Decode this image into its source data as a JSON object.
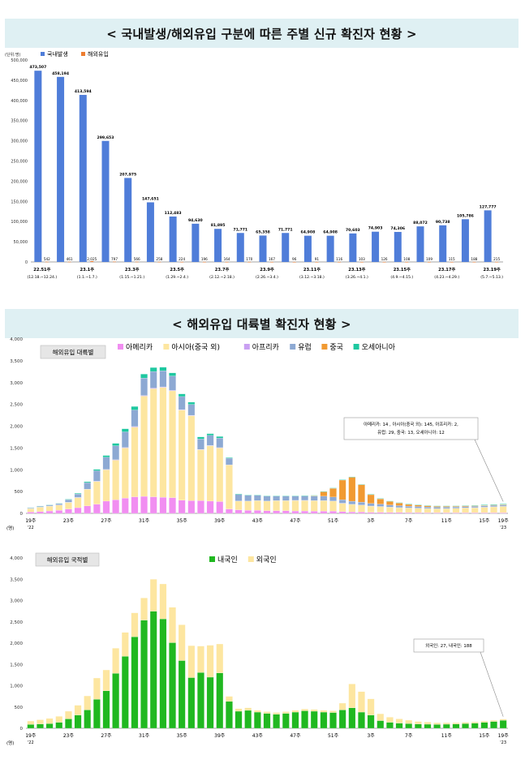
{
  "banners": {
    "top": "< 국내발생/해외유입 구분에 따른 주별 신규 확진자 현황 >",
    "middle": "< 해외유입 대륙별 확진자 현황 >"
  },
  "chart_data": [
    {
      "type": "bar",
      "y_unit_label": "(단위:명)",
      "legend": [
        "국내발생",
        "해외유입"
      ],
      "colors": [
        "#4f7dd9",
        "#ed7d31"
      ],
      "ylim": [
        0,
        500000
      ],
      "yticks": [
        "500,000",
        "450,000",
        "400,000",
        "350,000",
        "300,000",
        "250,000",
        "200,000",
        "150,000",
        "100,000",
        "50,000",
        "0"
      ],
      "series": [
        {
          "name": "국내발생",
          "values": [
            473507,
            458194,
            413594,
            299653,
            207975,
            147651,
            112483,
            94630,
            81895,
            71771,
            65358,
            71771,
            64908,
            64908,
            70603,
            74903,
            74306,
            88072,
            90738,
            105786,
            127777
          ]
        },
        {
          "name": "해외유입",
          "values": [
            542,
            461,
            2025,
            797,
            566,
            258,
            224,
            196,
            164,
            170,
            167,
            96,
            91,
            116,
            103,
            126,
            108,
            109,
            115,
            188,
            215
          ]
        }
      ],
      "domestic_labels": [
        "473,507",
        "458,194",
        "413,594",
        "299,653",
        "207,975",
        "147,651",
        "112,483",
        "94,630",
        "81,895",
        "71,771",
        "65,358",
        "71,771",
        "64,908",
        "64,908",
        "70,603",
        "74,903",
        "74,306",
        "88,072",
        "90,738",
        "105,786",
        "127,777"
      ],
      "import_labels": [
        "542",
        "461",
        "2,025",
        "797",
        "566",
        "258",
        "224",
        "196",
        "164",
        "170",
        "167",
        "96",
        "91",
        "116",
        "103",
        "126",
        "108",
        "109",
        "115",
        "188",
        "215"
      ],
      "x_labels": [
        {
          "index": 0,
          "week": "22.51주",
          "range": "(12.18.~12.24.)"
        },
        {
          "index": 2,
          "week": "23.1주",
          "range": "(1.1.~1.7.)"
        },
        {
          "index": 4,
          "week": "23.3주",
          "range": "(1.15.~1.21.)"
        },
        {
          "index": 6,
          "week": "23.5주",
          "range": "(1.29.~2.4.)"
        },
        {
          "index": 8,
          "week": "23.7주",
          "range": "(2.12.~2.18.)"
        },
        {
          "index": 10,
          "week": "23.9주",
          "range": "(2.26.~3.4.)"
        },
        {
          "index": 12,
          "week": "23.11주",
          "range": "(3.12.~3.18.)"
        },
        {
          "index": 14,
          "week": "23.13주",
          "range": "(3.26.~4.1.)"
        },
        {
          "index": 16,
          "week": "23.15주",
          "range": "(4.9.~4.15.)"
        },
        {
          "index": 18,
          "week": "23.17주",
          "range": "(4.23.~4.29.)"
        },
        {
          "index": 20,
          "week": "23.19주",
          "range": "(5.7.~5.13.)"
        }
      ]
    },
    {
      "type": "bar",
      "stacked": true,
      "box_title": "해외유입 대륙별",
      "ylim": [
        0,
        4000
      ],
      "yticks": [
        "4,000",
        "3,500",
        "3,000",
        "2,500",
        "2,000",
        "1,500",
        "1,000",
        "500",
        "0"
      ],
      "unit": "(명)",
      "x_ticks": [
        "19주",
        "23주",
        "27주",
        "31주",
        "35주",
        "39주",
        "43주",
        "47주",
        "51주",
        "3주",
        "7주",
        "11주",
        "15주",
        "19주"
      ],
      "x_year_left": "'22",
      "x_year_right": "'23",
      "annotation_line1": "아메리카: 14 , 아시아(중국 외): 145, 아프리카: 2,",
      "annotation_line2": "유럽: 29, 중국: 13, 오세아니아: 12",
      "series": [
        {
          "name": "아메리카",
          "color": "#f18ef1",
          "values": [
            30,
            40,
            55,
            70,
            100,
            130,
            170,
            210,
            280,
            310,
            350,
            380,
            390,
            380,
            370,
            360,
            300,
            290,
            290,
            280,
            270,
            100,
            80,
            70,
            70,
            60,
            60,
            60,
            55,
            55,
            50,
            50,
            50,
            40,
            35,
            30,
            25,
            25,
            20,
            20,
            18,
            18,
            15,
            15,
            14,
            14,
            14,
            14,
            14,
            14,
            14
          ]
        },
        {
          "name": "아시아(중국 외)",
          "color": "#fde6a0",
          "values": [
            80,
            100,
            110,
            120,
            150,
            230,
            380,
            520,
            720,
            910,
            1150,
            1600,
            2300,
            2480,
            2520,
            2450,
            2070,
            1950,
            1170,
            1270,
            1230,
            1010,
            200,
            210,
            220,
            220,
            230,
            230,
            240,
            240,
            240,
            240,
            230,
            190,
            170,
            160,
            140,
            130,
            120,
            110,
            105,
            100,
            95,
            90,
            95,
            100,
            110,
            115,
            125,
            135,
            145
          ]
        },
        {
          "name": "아프리카",
          "color": "#c9a0f2",
          "values": [
            2,
            3,
            3,
            3,
            5,
            5,
            6,
            8,
            8,
            10,
            10,
            12,
            15,
            15,
            12,
            12,
            10,
            10,
            8,
            8,
            8,
            5,
            5,
            4,
            4,
            4,
            4,
            4,
            4,
            4,
            4,
            4,
            4,
            3,
            3,
            3,
            3,
            3,
            3,
            2,
            2,
            2,
            2,
            2,
            2,
            2,
            2,
            2,
            2,
            2,
            2
          ]
        },
        {
          "name": "유럽",
          "color": "#8da9d3",
          "values": [
            15,
            20,
            25,
            30,
            60,
            80,
            150,
            240,
            280,
            320,
            360,
            380,
            400,
            380,
            370,
            330,
            300,
            250,
            240,
            230,
            220,
            150,
            150,
            130,
            120,
            110,
            100,
            100,
            95,
            100,
            100,
            100,
            90,
            80,
            70,
            65,
            60,
            55,
            50,
            45,
            40,
            38,
            35,
            35,
            33,
            32,
            30,
            30,
            30,
            29,
            29
          ]
        },
        {
          "name": "중국",
          "color": "#f19a32",
          "values": [
            0,
            0,
            0,
            0,
            0,
            0,
            0,
            0,
            0,
            0,
            0,
            0,
            0,
            0,
            0,
            0,
            0,
            0,
            0,
            0,
            0,
            0,
            0,
            0,
            0,
            0,
            0,
            0,
            0,
            0,
            10,
            100,
            200,
            450,
            550,
            400,
            200,
            120,
            80,
            60,
            40,
            30,
            25,
            20,
            18,
            15,
            15,
            14,
            13,
            13,
            13
          ]
        },
        {
          "name": "오세아니아",
          "color": "#1ec8a0",
          "values": [
            5,
            5,
            5,
            8,
            10,
            15,
            20,
            30,
            40,
            55,
            70,
            80,
            90,
            90,
            80,
            70,
            60,
            50,
            45,
            40,
            35,
            15,
            12,
            10,
            10,
            10,
            10,
            10,
            10,
            10,
            10,
            10,
            10,
            10,
            10,
            10,
            10,
            10,
            10,
            10,
            10,
            10,
            10,
            10,
            10,
            10,
            10,
            10,
            12,
            12,
            12
          ]
        }
      ]
    },
    {
      "type": "bar",
      "stacked": true,
      "box_title": "해외유입 국적별",
      "ylim": [
        0,
        4000
      ],
      "yticks": [
        "4,000",
        "3,500",
        "3,000",
        "2,500",
        "2,000",
        "1,500",
        "1,000",
        "500",
        "0"
      ],
      "unit": "(명)",
      "x_ticks": [
        "19주",
        "23주",
        "27주",
        "31주",
        "35주",
        "39주",
        "43주",
        "47주",
        "51주",
        "3주",
        "7주",
        "11주",
        "15주",
        "19주"
      ],
      "x_year_left": "'22",
      "x_year_right": "'23",
      "annotation_line1": "외국인: 27, 내국인: 188",
      "series": [
        {
          "name": "내국인",
          "color": "#20b820",
          "values": [
            90,
            100,
            110,
            140,
            220,
            310,
            430,
            680,
            880,
            1290,
            1690,
            2150,
            2540,
            2750,
            2570,
            2010,
            1590,
            1190,
            1310,
            1200,
            1300,
            630,
            400,
            420,
            380,
            350,
            330,
            350,
            380,
            410,
            400,
            380,
            370,
            430,
            480,
            380,
            310,
            180,
            140,
            120,
            110,
            100,
            95,
            90,
            95,
            100,
            110,
            120,
            140,
            160,
            188
          ]
        },
        {
          "name": "외국인",
          "color": "#fde6a0",
          "values": [
            80,
            100,
            120,
            140,
            180,
            230,
            330,
            500,
            490,
            590,
            560,
            560,
            520,
            750,
            820,
            830,
            840,
            750,
            620,
            750,
            680,
            120,
            60,
            60,
            40,
            40,
            40,
            40,
            40,
            40,
            40,
            40,
            40,
            160,
            560,
            480,
            380,
            160,
            120,
            100,
            80,
            60,
            50,
            40,
            35,
            30,
            30,
            30,
            30,
            28,
            27
          ]
        }
      ]
    }
  ]
}
